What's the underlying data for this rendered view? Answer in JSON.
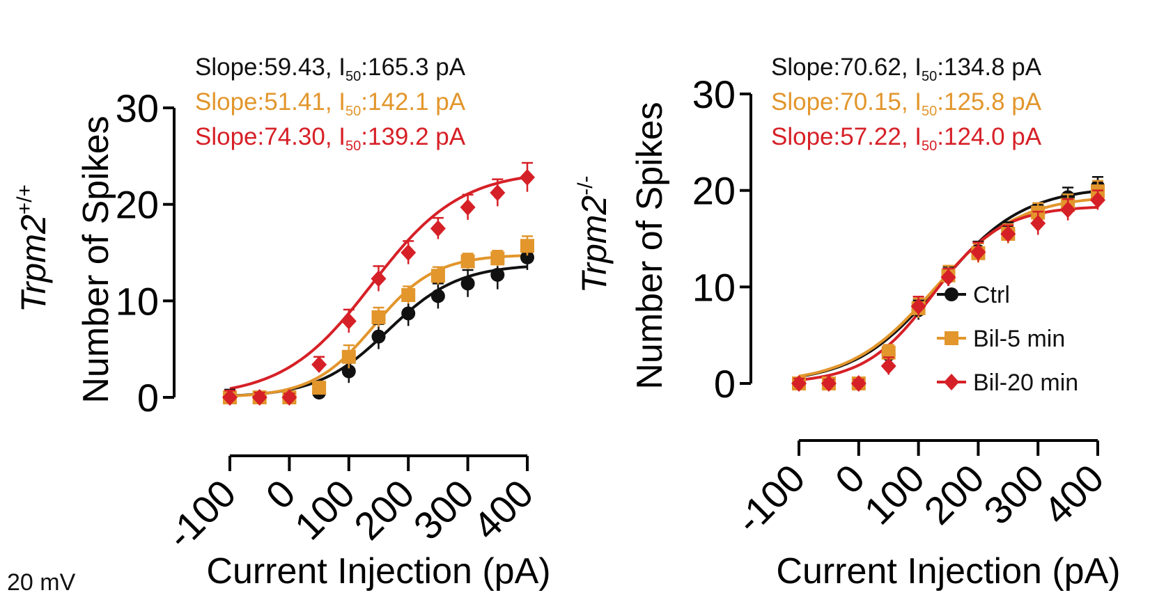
{
  "corner_label": "20 mV",
  "colors": {
    "ctrl": "#111111",
    "bil5": "#e2962c",
    "bil20": "#d62027",
    "axis": "#000000"
  },
  "chart_data": [
    {
      "type": "scatter",
      "panel": "left",
      "genotype_base": "Trpm2",
      "genotype_sup": "+/+",
      "ylabel": "Number of Spikes",
      "xlabel": "Current Injection (pA)",
      "x": [
        -100,
        -50,
        0,
        50,
        100,
        150,
        200,
        250,
        300,
        350,
        400
      ],
      "xticks": [
        -100,
        0,
        100,
        200,
        300,
        400
      ],
      "yticks": [
        0,
        10,
        20,
        30
      ],
      "xlim": [
        -100,
        400
      ],
      "ylim": [
        0,
        30
      ],
      "fit_label_prefix": "Slope:",
      "fit_label_mid": ", I",
      "fit_label_sub": "50",
      "fit_label_unit": " pA",
      "series": [
        {
          "name": "Ctrl",
          "color_key": "ctrl",
          "marker": "circle",
          "values": [
            0,
            0,
            0,
            0.5,
            2.7,
            6.3,
            8.7,
            10.5,
            11.8,
            12.7,
            14.5
          ],
          "errors": [
            0.8,
            0.6,
            0.5,
            0.7,
            1.2,
            1.3,
            1.3,
            1.3,
            1.4,
            1.5,
            1.3
          ],
          "fit_top": 13.8,
          "slope": "59.43",
          "i50": "165.3"
        },
        {
          "name": "Bil-5 min",
          "color_key": "bil5",
          "marker": "square",
          "values": [
            0,
            0,
            0,
            1.0,
            4.2,
            8.3,
            10.6,
            12.6,
            14.1,
            14.4,
            15.7
          ],
          "errors": [
            0.6,
            0.5,
            0.4,
            0.6,
            1.2,
            1.0,
            0.9,
            0.9,
            0.8,
            0.8,
            1.0
          ],
          "fit_top": 14.8,
          "slope": "51.41",
          "i50": "142.1"
        },
        {
          "name": "Bil-20 min",
          "color_key": "bil20",
          "marker": "diamond",
          "values": [
            0,
            0,
            0,
            3.4,
            7.9,
            12.3,
            15.0,
            17.5,
            19.7,
            21.2,
            22.8
          ],
          "errors": [
            0.7,
            0.5,
            0.4,
            0.8,
            1.2,
            1.3,
            1.2,
            1.1,
            1.3,
            1.4,
            1.5
          ],
          "fit_top": 23.5,
          "slope": "74.30",
          "i50": "139.2"
        }
      ]
    },
    {
      "type": "scatter",
      "panel": "right",
      "genotype_base": "Trpm2",
      "genotype_sup": "-/-",
      "ylabel": "Number of Spikes",
      "xlabel": "Current Injection (pA)",
      "x": [
        -100,
        -50,
        0,
        50,
        100,
        150,
        200,
        250,
        300,
        350,
        400
      ],
      "xticks": [
        -100,
        0,
        100,
        200,
        300,
        400
      ],
      "yticks": [
        0,
        10,
        20,
        30
      ],
      "xlim": [
        -100,
        400
      ],
      "ylim": [
        0,
        30
      ],
      "fit_label_prefix": "Slope:",
      "fit_label_mid": ", I",
      "fit_label_sub": "50",
      "fit_label_unit": " pA",
      "legend_position": "center-right",
      "series": [
        {
          "name": "Ctrl",
          "color_key": "ctrl",
          "marker": "circle",
          "values": [
            0,
            0,
            0,
            3.0,
            7.6,
            11.1,
            13.7,
            15.8,
            17.5,
            19.3,
            20.4
          ],
          "errors": [
            0.5,
            0.4,
            0.4,
            0.8,
            1.0,
            1.0,
            1.0,
            0.9,
            1.0,
            1.0,
            1.0
          ],
          "fit_top": 20.4,
          "slope": "70.62",
          "i50": "134.8"
        },
        {
          "name": "Bil-5 min",
          "color_key": "bil5",
          "marker": "square",
          "values": [
            0,
            0,
            0,
            3.2,
            7.8,
            11.2,
            13.5,
            15.5,
            17.7,
            18.5,
            19.9
          ],
          "errors": [
            0.5,
            0.4,
            0.4,
            0.8,
            1.0,
            1.0,
            1.0,
            1.0,
            1.0,
            1.1,
            1.1
          ],
          "fit_top": 19.5,
          "slope": "70.15",
          "i50": "125.8"
        },
        {
          "name": "Bil-20 min",
          "color_key": "bil20",
          "marker": "diamond",
          "values": [
            0,
            0,
            0,
            1.8,
            8.0,
            11.0,
            13.6,
            15.5,
            16.6,
            18.0,
            19.0
          ],
          "errors": [
            0.5,
            0.4,
            0.4,
            0.9,
            1.0,
            0.9,
            1.0,
            0.9,
            1.2,
            1.1,
            1.0
          ],
          "fit_top": 18.4,
          "slope": "57.22",
          "i50": "124.0"
        }
      ]
    }
  ]
}
